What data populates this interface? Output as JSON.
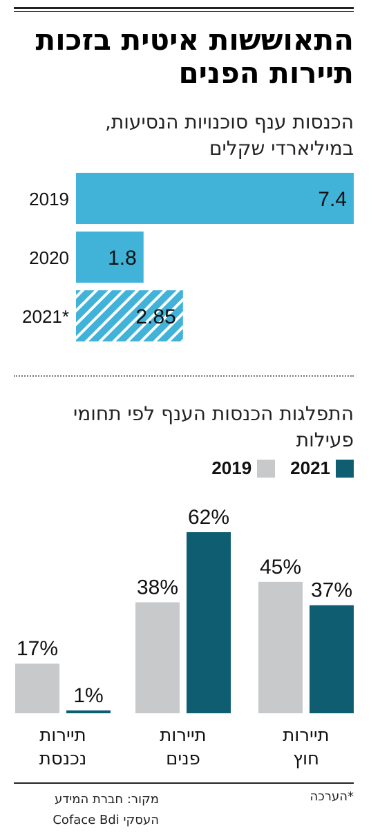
{
  "title": "התאוששות איטית בזכות תיירות הפנים",
  "colors": {
    "bar_top": "#41b3d9",
    "hatch_stripe": "#ffffff",
    "series_2019": "#c8c9cb",
    "series_2021": "#0e5d70",
    "text": "#1a1a1a"
  },
  "chart_data": [
    {
      "type": "bar",
      "orientation": "horizontal",
      "title": "הכנסות ענף סוכנויות הנסיעות, במיליארדי שקלים",
      "categories": [
        "2019",
        "2020",
        "2021*"
      ],
      "values": [
        7.4,
        1.8,
        2.85
      ],
      "value_labels": [
        "7.4",
        "1.8",
        "2.85"
      ],
      "hatched": [
        false,
        false,
        true
      ],
      "xlim": [
        0,
        7.4
      ],
      "grid": false
    },
    {
      "type": "bar",
      "orientation": "vertical",
      "title": "התפלגות הכנסות הענף לפי תחומי פעילות",
      "categories": [
        "תיירות חוץ",
        "תיירות פנים",
        "תיירות נכנסת"
      ],
      "category_lines": [
        [
          "תיירות",
          "חוץ"
        ],
        [
          "תיירות",
          "פנים"
        ],
        [
          "תיירות",
          "נכנסת"
        ]
      ],
      "series": [
        {
          "name": "2019",
          "values": [
            45,
            38,
            17
          ],
          "labels": [
            "45%",
            "38%",
            "17%"
          ]
        },
        {
          "name": "2021",
          "values": [
            37,
            62,
            1
          ],
          "labels": [
            "37%",
            "62%",
            "1%"
          ]
        }
      ],
      "ylim": [
        0,
        62
      ],
      "legend": "top-right",
      "grid": false
    }
  ],
  "footer": {
    "note": "*הערכה",
    "source_line1": "מקור: חברת המידע",
    "source_line2": "העסקי Coface Bdi"
  }
}
